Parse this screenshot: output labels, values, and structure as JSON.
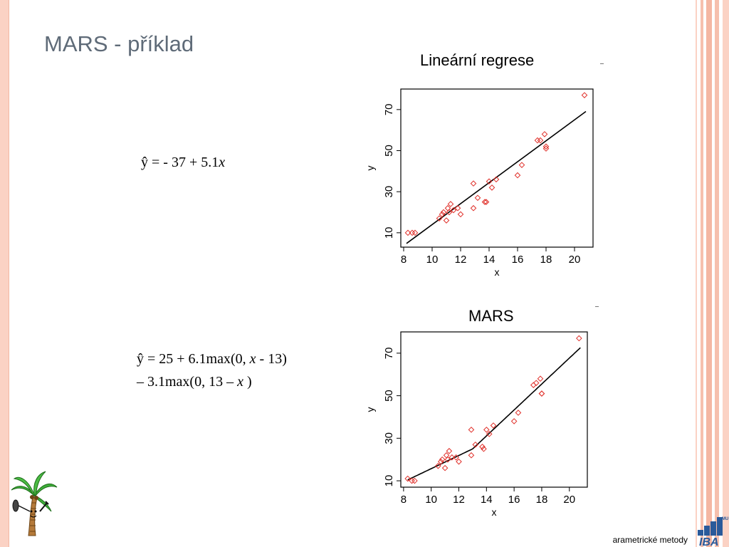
{
  "slide": {
    "title": "MARS - příklad",
    "footer": "arametrické metody",
    "logo": {
      "text": "IBA",
      "superscript": "MU",
      "color": "#2a5a9a"
    },
    "accent_color": "#f4b7a3"
  },
  "equations": {
    "linear": {
      "lead": "ŷ = - 37 + 5.1",
      "var": "x"
    },
    "mars": {
      "line1_pre": "ŷ = 25 + 6.1max(0, ",
      "line1_var": "x",
      "line1_post": " - 13)",
      "line2_pre": "– 3.1max(0, 13 – ",
      "line2_var": "x",
      "line2_post": " )"
    }
  },
  "chart_data": [
    {
      "type": "scatter",
      "title": "Lineární regrese",
      "xlabel": "x",
      "ylabel": "y",
      "xticks": [
        8,
        10,
        12,
        14,
        16,
        18,
        20
      ],
      "yticks": [
        10,
        30,
        50,
        70
      ],
      "xlim": [
        7.8,
        21.3
      ],
      "ylim": [
        3,
        80
      ],
      "point_color": "#e0302a",
      "points": [
        [
          8.3,
          10
        ],
        [
          8.6,
          10
        ],
        [
          8.8,
          10
        ],
        [
          10.5,
          17
        ],
        [
          10.7,
          19
        ],
        [
          10.8,
          20
        ],
        [
          11.0,
          16
        ],
        [
          11.1,
          22
        ],
        [
          11.2,
          20
        ],
        [
          11.3,
          24
        ],
        [
          11.5,
          21
        ],
        [
          11.8,
          22
        ],
        [
          12.0,
          19
        ],
        [
          12.9,
          22
        ],
        [
          12.9,
          34
        ],
        [
          13.2,
          27
        ],
        [
          13.7,
          25
        ],
        [
          13.8,
          25
        ],
        [
          14.0,
          35
        ],
        [
          14.2,
          32
        ],
        [
          14.5,
          36
        ],
        [
          16.0,
          38
        ],
        [
          16.3,
          43
        ],
        [
          17.4,
          55
        ],
        [
          17.6,
          55
        ],
        [
          17.9,
          58
        ],
        [
          18.0,
          52
        ],
        [
          18.0,
          51
        ],
        [
          20.7,
          77
        ]
      ],
      "fit": {
        "type": "line",
        "intercept": -37,
        "slope": 5.1,
        "x": [
          8.2,
          20.8
        ]
      }
    },
    {
      "type": "scatter",
      "title": "MARS",
      "xlabel": "x",
      "ylabel": "y",
      "xticks": [
        8,
        10,
        12,
        14,
        16,
        18,
        20
      ],
      "yticks": [
        10,
        30,
        50,
        70
      ],
      "xlim": [
        7.8,
        21.3
      ],
      "ylim": [
        7,
        80
      ],
      "point_color": "#e0302a",
      "points": [
        [
          8.3,
          11
        ],
        [
          8.6,
          10
        ],
        [
          8.8,
          10
        ],
        [
          10.5,
          17
        ],
        [
          10.7,
          19
        ],
        [
          10.8,
          20
        ],
        [
          11.0,
          16
        ],
        [
          11.1,
          22
        ],
        [
          11.2,
          20
        ],
        [
          11.3,
          24
        ],
        [
          11.5,
          21
        ],
        [
          11.8,
          21
        ],
        [
          12.0,
          19
        ],
        [
          12.9,
          22
        ],
        [
          12.9,
          34
        ],
        [
          13.2,
          27
        ],
        [
          13.7,
          26
        ],
        [
          13.8,
          25
        ],
        [
          14.0,
          34
        ],
        [
          14.2,
          32
        ],
        [
          14.5,
          36
        ],
        [
          16.0,
          38
        ],
        [
          16.3,
          42
        ],
        [
          17.4,
          55
        ],
        [
          17.6,
          56
        ],
        [
          17.9,
          58
        ],
        [
          18.0,
          51
        ],
        [
          18.0,
          51
        ],
        [
          20.7,
          77
        ]
      ],
      "fit": {
        "type": "mars",
        "x": [
          8.3,
          20.8
        ]
      }
    }
  ]
}
